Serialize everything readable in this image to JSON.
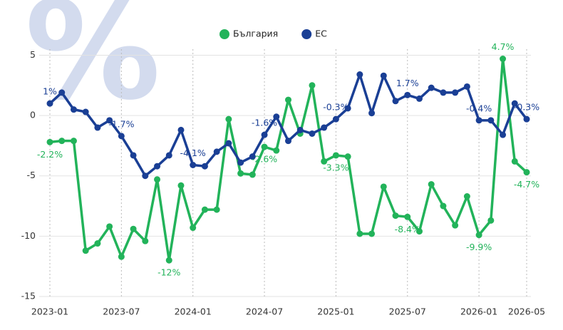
{
  "chart_data": {
    "type": "line",
    "watermark": "%",
    "categories": [
      "2023-01",
      null,
      null,
      null,
      null,
      null,
      "2023-07",
      null,
      null,
      null,
      null,
      null,
      "2024-01",
      null,
      null,
      null,
      null,
      null,
      "2024-07",
      null,
      null,
      null,
      null,
      null,
      "2025-01",
      null,
      null,
      null,
      null,
      null,
      "2025-07",
      null,
      null,
      null,
      null,
      null,
      "2026-01",
      null,
      null,
      null,
      "2026-05"
    ],
    "series": [
      {
        "name": "България",
        "color": "#22b35a",
        "values": [
          -2.2,
          -2.1,
          -2.1,
          -11.2,
          -10.6,
          -9.2,
          -11.7,
          -9.4,
          -10.4,
          -5.3,
          -12,
          -5.8,
          -9.3,
          -7.8,
          -7.8,
          -0.3,
          -4.8,
          -4.9,
          -2.6,
          -2.9,
          1.3,
          -1.5,
          2.5,
          -3.8,
          -3.3,
          -3.4,
          -9.8,
          -9.8,
          -5.9,
          -8.3,
          -8.4,
          -9.6,
          -5.7,
          -7.5,
          -9.1,
          -6.7,
          -9.9,
          -8.7,
          4.7,
          -3.8,
          -4.7
        ],
        "value_labels": [
          "-2.2%",
          null,
          null,
          null,
          null,
          null,
          null,
          null,
          null,
          null,
          "-12%",
          null,
          null,
          null,
          null,
          null,
          null,
          null,
          "-2.6%",
          null,
          null,
          null,
          null,
          null,
          "-3.3%",
          null,
          null,
          null,
          null,
          null,
          "-8.4%",
          null,
          null,
          null,
          null,
          null,
          "-9.9%",
          null,
          "4.7%",
          null,
          "-4.7%"
        ]
      },
      {
        "name": "ЕС",
        "color": "#1a3f95",
        "values": [
          1,
          1.9,
          0.5,
          0.3,
          -1,
          -0.4,
          -1.7,
          -3.3,
          -5,
          -4.2,
          -3.3,
          -1.2,
          -4.1,
          -4.2,
          -3,
          -2.3,
          -3.9,
          -3.4,
          -1.6,
          -0.1,
          -2.1,
          -1.2,
          -1.5,
          -1,
          -0.3,
          0.6,
          3.4,
          0.2,
          3.3,
          1.2,
          1.7,
          1.4,
          2.3,
          1.9,
          1.9,
          2.4,
          -0.4,
          -0.4,
          -1.6,
          1,
          -0.3
        ],
        "value_labels": [
          "1%",
          null,
          null,
          null,
          null,
          null,
          "-1.7%",
          null,
          null,
          null,
          null,
          null,
          "-4.1%",
          null,
          null,
          null,
          null,
          null,
          "-1.6%",
          null,
          null,
          null,
          null,
          null,
          "-0.3%",
          null,
          null,
          null,
          null,
          null,
          "1.7%",
          null,
          null,
          null,
          null,
          null,
          "-0.4%",
          null,
          null,
          null,
          "-0.3%"
        ]
      }
    ],
    "ylim": [
      -15,
      5.5
    ],
    "yticks": [
      5,
      0,
      -5,
      -10,
      -15
    ],
    "grid": true
  }
}
